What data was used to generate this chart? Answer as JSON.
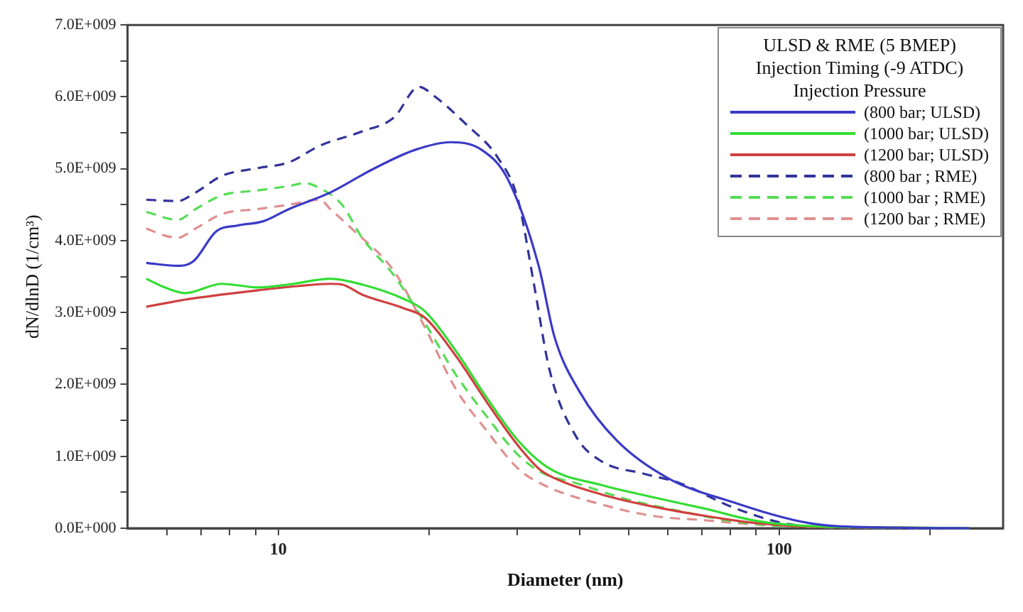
{
  "chart_data": {
    "type": "line",
    "xlabel": "Diameter (nm)",
    "ylabel": "dN/dlnD (1/cm³)",
    "legend_title": "ULSD & RME (5 BMEP)\nInjection Timing (-9 ATDC)\nInjection Pressure",
    "legend": "top right",
    "grid": false,
    "marker": "none",
    "log": "x",
    "xlim": [
      5,
      280
    ],
    "xticks": [
      {
        "value": 6,
        "label": null
      },
      {
        "value": 7,
        "label": null
      },
      {
        "value": 8,
        "label": null
      },
      {
        "value": 9,
        "label": null
      },
      10,
      {
        "value": 20,
        "label": null
      },
      {
        "value": 30,
        "label": null
      },
      {
        "value": 40,
        "label": null
      },
      {
        "value": 50,
        "label": null
      },
      {
        "value": 60,
        "label": null
      },
      {
        "value": 70,
        "label": null
      },
      {
        "value": 80,
        "label": null
      },
      {
        "value": 90,
        "label": null
      },
      100,
      {
        "value": 200,
        "label": null
      }
    ],
    "ylim": [
      0,
      7000000000
    ],
    "yticks": [
      {
        "value": 0,
        "label": "0.0E+000"
      },
      {
        "value": 500000000,
        "label": null
      },
      {
        "value": 1000000000,
        "label": "1.0E+009"
      },
      {
        "value": 1500000000,
        "label": null
      },
      {
        "value": 2000000000,
        "label": "2.0E+009"
      },
      {
        "value": 2500000000,
        "label": null
      },
      {
        "value": 3000000000,
        "label": "3.0E+009"
      },
      {
        "value": 3500000000,
        "label": null
      },
      {
        "value": 4000000000,
        "label": "4.0E+009"
      },
      {
        "value": 4500000000,
        "label": null
      },
      {
        "value": 5000000000,
        "label": "5.0E+009"
      },
      {
        "value": 5500000000,
        "label": null
      },
      {
        "value": 6000000000,
        "label": "6.0E+009"
      },
      {
        "value": 6500000000,
        "label": null
      },
      {
        "value": 7000000000,
        "label": "7.0E+009"
      }
    ],
    "series": [
      {
        "name": "(800 bar; ULSD)",
        "color": "#3a3ac8",
        "line_style": "solid",
        "x": [
          5.45,
          6.29,
          6.76,
          7.52,
          8.28,
          9.33,
          10.5,
          12.7,
          15.4,
          18.7,
          22.1,
          25.5,
          28.7,
          33.1,
          35.6,
          40.1,
          47.4,
          60.2,
          80.2,
          115,
          164,
          240
        ],
        "values": [
          3690000000,
          3650000000,
          3710000000,
          4130000000,
          4210000000,
          4270000000,
          4440000000,
          4670000000,
          4990000000,
          5260000000,
          5370000000,
          5260000000,
          4860000000,
          3650000000,
          2660000000,
          1880000000,
          1220000000,
          690000000,
          370000000,
          70000000,
          10000000,
          0
        ]
      },
      {
        "name": "(1000 bar; ULSD)",
        "color": "#33dd33",
        "line_style": "solid",
        "x": [
          5.45,
          5.93,
          6.52,
          7.71,
          9.11,
          10.5,
          12.7,
          14.7,
          17.8,
          19.6,
          22.6,
          26.1,
          30.1,
          34.8,
          44.2,
          56.1,
          71.3,
          90.4,
          115,
          164,
          240
        ],
        "values": [
          3470000000,
          3350000000,
          3270000000,
          3400000000,
          3350000000,
          3390000000,
          3470000000,
          3390000000,
          3190000000,
          3020000000,
          2470000000,
          1810000000,
          1220000000,
          830000000,
          600000000,
          430000000,
          270000000,
          100000000,
          30000000,
          10000000,
          0
        ]
      },
      {
        "name": "(1200 bar; ULSD)",
        "color": "#d04040",
        "line_style": "solid",
        "x": [
          5.45,
          6.52,
          7.71,
          9.11,
          11.0,
          12.7,
          13.4,
          14.7,
          17.8,
          19.6,
          22.6,
          26.1,
          30.1,
          33.1,
          34.8,
          44.2,
          56.1,
          71.3,
          90.4,
          115,
          164,
          240
        ],
        "values": [
          3080000000,
          3180000000,
          3250000000,
          3310000000,
          3370000000,
          3400000000,
          3390000000,
          3250000000,
          3060000000,
          2930000000,
          2400000000,
          1750000000,
          1150000000,
          830000000,
          730000000,
          470000000,
          300000000,
          170000000,
          70000000,
          20000000,
          10000000,
          0
        ]
      },
      {
        "name": "(800 bar ; RME)",
        "color": "#33339a",
        "line_style": "dashed",
        "x": [
          5.45,
          6.29,
          6.84,
          7.71,
          9.11,
          10.5,
          12.1,
          14.7,
          17.0,
          19.1,
          20.5,
          23.7,
          27.4,
          30.1,
          32.4,
          34.8,
          39.2,
          44.2,
          53.5,
          63.2,
          80.2,
          102,
          129,
          240
        ],
        "values": [
          4570000000,
          4550000000,
          4670000000,
          4900000000,
          5010000000,
          5090000000,
          5320000000,
          5520000000,
          5710000000,
          6140000000,
          6010000000,
          5620000000,
          5160000000,
          4570000000,
          3390000000,
          2200000000,
          1290000000,
          930000000,
          760000000,
          630000000,
          300000000,
          70000000,
          10000000,
          0
        ]
      },
      {
        "name": "(1000 bar ; RME)",
        "color": "#55dd55",
        "line_style": "dashed",
        "x": [
          5.45,
          6.29,
          6.84,
          7.71,
          9.11,
          10.5,
          11.3,
          12.1,
          13.4,
          14.7,
          17.0,
          19.6,
          22.6,
          26.1,
          30.1,
          33.9,
          39.2,
          49.8,
          63.2,
          80.2,
          102,
          164,
          240
        ],
        "values": [
          4400000000,
          4290000000,
          4440000000,
          4630000000,
          4700000000,
          4760000000,
          4800000000,
          4730000000,
          4500000000,
          4040000000,
          3520000000,
          2860000000,
          2140000000,
          1550000000,
          1020000000,
          760000000,
          630000000,
          400000000,
          240000000,
          100000000,
          30000000,
          10000000,
          0
        ]
      },
      {
        "name": "(1200 bar ; RME)",
        "color": "#e09090",
        "line_style": "dashed",
        "x": [
          5.45,
          5.93,
          6.29,
          6.84,
          7.71,
          9.11,
          10.5,
          12.1,
          12.7,
          14.0,
          17.0,
          19.6,
          22.6,
          26.1,
          30.1,
          33.9,
          44.2,
          56.1,
          71.3,
          90.4,
          130,
          240
        ],
        "values": [
          4170000000,
          4070000000,
          4040000000,
          4170000000,
          4370000000,
          4440000000,
          4500000000,
          4570000000,
          4440000000,
          4170000000,
          3580000000,
          2800000000,
          1940000000,
          1350000000,
          830000000,
          600000000,
          330000000,
          170000000,
          110000000,
          50000000,
          10000000,
          0
        ]
      }
    ]
  }
}
